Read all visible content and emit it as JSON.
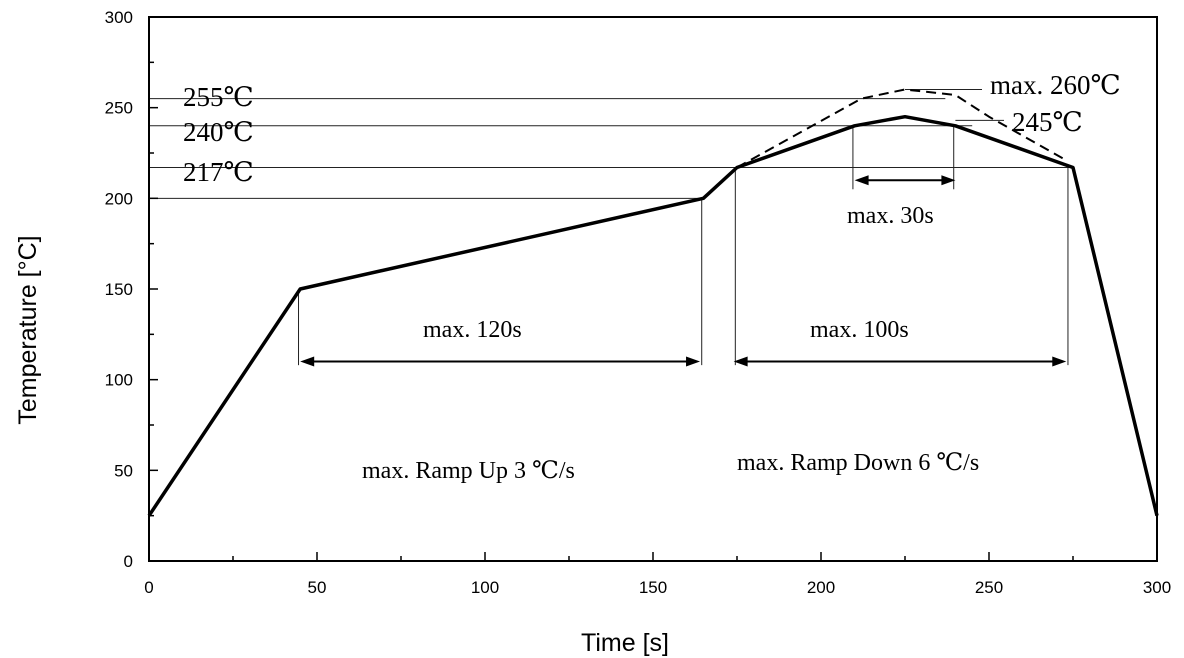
{
  "chart_data": {
    "type": "line",
    "xlabel": "Time [s]",
    "ylabel": "Temperature [°C]",
    "xlim": [
      0,
      300
    ],
    "ylim": [
      0,
      300
    ],
    "xticks": [
      "0",
      "50",
      "100",
      "150",
      "200",
      "250",
      "300"
    ],
    "yticks": [
      "0",
      "50",
      "100",
      "150",
      "200",
      "250",
      "300"
    ],
    "grid": false,
    "series": [
      {
        "style": "solid",
        "x": [
          0,
          45,
          165,
          175,
          210,
          225,
          240,
          275,
          300
        ],
        "y": [
          25,
          150,
          200,
          217,
          240,
          245,
          240,
          217,
          25
        ]
      },
      {
        "style": "dashed",
        "x": [
          175,
          212,
          225,
          240,
          250,
          272
        ],
        "y": [
          217,
          255,
          260,
          257,
          245,
          222
        ]
      }
    ],
    "annotations": [
      {
        "text": "255℃",
        "y": 255
      },
      {
        "text": "240℃",
        "y": 240
      },
      {
        "text": "217℃",
        "y": 217
      },
      {
        "text": "max. 260℃",
        "y": 260
      },
      {
        "text": "245℃",
        "y": 245
      },
      {
        "text": "max. 30s",
        "x_from": 210,
        "x_to": 240,
        "y": 210
      },
      {
        "text": "max. 120s",
        "x_from": 45,
        "x_to": 164,
        "y": 110
      },
      {
        "text": "max. 100s",
        "x_from": 174,
        "x_to": 273,
        "y": 110
      },
      {
        "text": "max. Ramp Up 3 ℃/s"
      },
      {
        "text": "max. Ramp Down 6 ℃/s"
      }
    ]
  }
}
